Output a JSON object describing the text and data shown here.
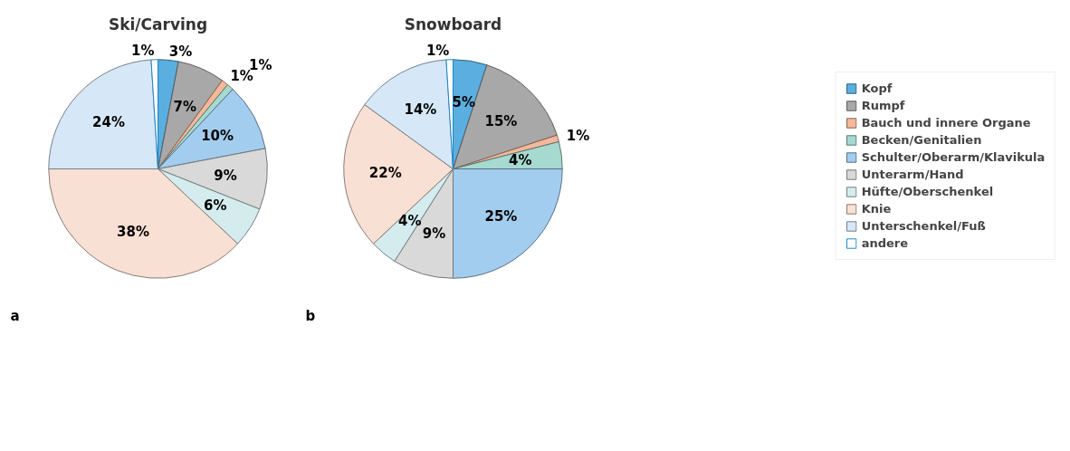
{
  "chart_data": [
    {
      "type": "pie",
      "title": "Ski/Carving",
      "categories": [
        "Kopf",
        "Rumpf",
        "Bauch und innere Organe",
        "Becken/Genitalien",
        "Schulter/Oberarm/Klavikula",
        "Unterarm/Hand",
        "Hüfte/Oberschenkel",
        "Knie",
        "Unterschenkel/Fuß",
        "andere"
      ],
      "values": [
        3,
        7,
        1,
        1,
        10,
        9,
        6,
        38,
        24,
        1
      ],
      "value_labels": [
        "3%",
        "7%",
        "1%",
        "1%",
        "10%",
        "9%",
        "6%",
        "38%",
        "24%",
        "1%"
      ],
      "colors": [
        "#5aafe0",
        "#a8a8a8",
        "#f5b89a",
        "#a6d9cf",
        "#a3cdef",
        "#d9d9d9",
        "#d4ecee",
        "#f9e0d4",
        "#d6e8f8",
        "#ffffff"
      ],
      "legend": "right",
      "annotations": [
        "a"
      ]
    },
    {
      "type": "pie",
      "title": "Snowboard",
      "values": [
        5,
        15,
        1,
        4,
        25,
        9,
        4,
        22,
        14,
        1
      ],
      "value_labels": [
        "5%",
        "15%",
        "1%",
        "4%",
        "25%",
        "9%",
        "4%",
        "22%",
        "14%",
        "1%"
      ],
      "colors": [
        "#5aafe0",
        "#a8a8a8",
        "#f5b89a",
        "#a6d9cf",
        "#a3cdef",
        "#d9d9d9",
        "#d4ecee",
        "#f9e0d4",
        "#d6e8f8",
        "#ffffff"
      ],
      "annotations": [
        "b"
      ]
    }
  ]
}
